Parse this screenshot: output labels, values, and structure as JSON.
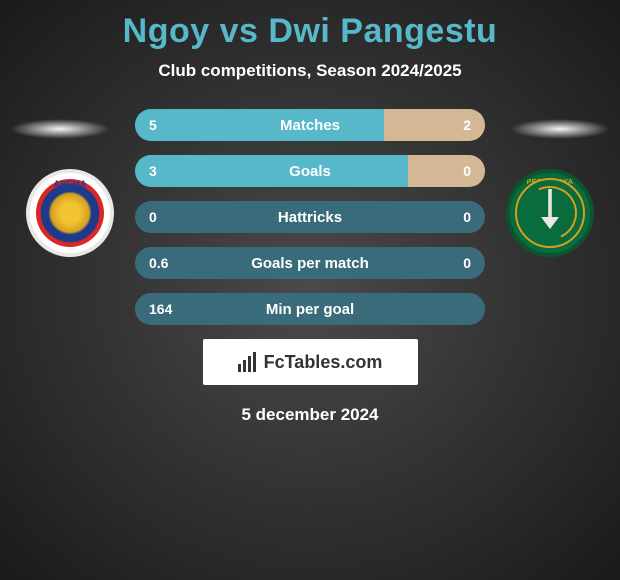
{
  "title_color": "#57b8c9",
  "player1": "Ngoy",
  "vs": "vs",
  "player2": "Dwi Pangestu",
  "subtitle": "Club competitions, Season 2024/2025",
  "row_bg": "#3a6b7a",
  "left_color": "#57b8c9",
  "right_color": "#d4b896",
  "stats": [
    {
      "label": "Matches",
      "left_val": "5",
      "right_val": "2",
      "left_pct": 71,
      "right_pct": 29
    },
    {
      "label": "Goals",
      "left_val": "3",
      "right_val": "0",
      "left_pct": 78,
      "right_pct": 22
    },
    {
      "label": "Hattricks",
      "left_val": "0",
      "right_val": "0",
      "left_pct": 0,
      "right_pct": 0
    },
    {
      "label": "Goals per match",
      "left_val": "0.6",
      "right_val": "0",
      "left_pct": 0,
      "right_pct": 0
    },
    {
      "label": "Min per goal",
      "left_val": "164",
      "right_val": "",
      "left_pct": 0,
      "right_pct": 0
    }
  ],
  "brand_icon": "bar-chart-icon",
  "brand": "FcTables.com",
  "date": "5 december 2024",
  "badge_left_text": "AREMA",
  "badge_right_text": "PERSEBAYA"
}
